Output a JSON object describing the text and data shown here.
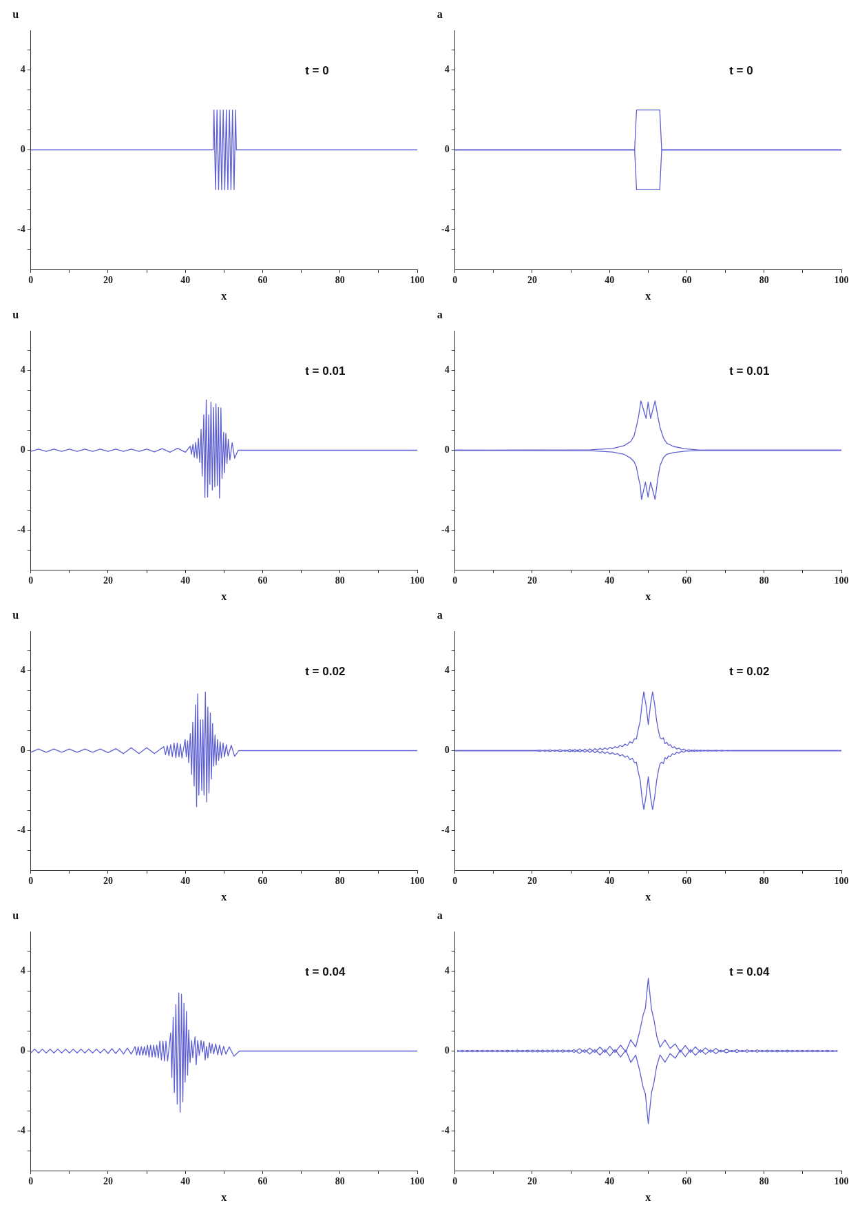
{
  "chart_data": [
    {
      "type": "line",
      "ylabel": "u",
      "xlabel": "x",
      "annotations": [
        "t = 0"
      ],
      "xlim": [
        0,
        100
      ],
      "ylim": [
        -6,
        6
      ],
      "xticks": [
        0,
        {
          "value": 10,
          "label": null
        },
        20,
        {
          "value": 30,
          "label": null
        },
        40,
        {
          "value": 50,
          "label": null
        },
        60,
        {
          "value": 70,
          "label": null
        },
        80,
        {
          "value": 90,
          "label": null
        },
        100
      ],
      "yticks": [
        {
          "value": -5,
          "label": null
        },
        -4,
        {
          "value": -3,
          "label": null
        },
        {
          "value": -2,
          "label": null
        },
        {
          "value": -1,
          "label": null
        },
        0,
        {
          "value": 1,
          "label": null
        },
        {
          "value": 2,
          "label": null
        },
        {
          "value": 3,
          "label": null
        },
        4,
        {
          "value": 5,
          "label": null
        }
      ],
      "grid": false,
      "legend": false,
      "marker": "none",
      "series": [
        {
          "color": "#5d5fd3",
          "x": [
            0,
            47.2,
            47.4,
            47.8,
            48.2,
            48.6,
            49.0,
            49.4,
            49.8,
            50.2,
            50.6,
            51.0,
            51.4,
            51.8,
            52.2,
            52.6,
            53.0,
            53.2,
            100
          ],
          "values": [
            0,
            0,
            2,
            -2,
            2,
            -2,
            2,
            -2,
            2,
            -2,
            2,
            -2,
            2,
            -2,
            2,
            -2,
            2,
            0,
            0
          ]
        }
      ]
    },
    {
      "type": "line",
      "ylabel": "a",
      "xlabel": "x",
      "annotations": [
        "t = 0"
      ],
      "xlim": [
        0,
        100
      ],
      "ylim": [
        -6,
        6
      ],
      "xticks": [
        0,
        {
          "value": 10,
          "label": null
        },
        20,
        {
          "value": 30,
          "label": null
        },
        40,
        {
          "value": 50,
          "label": null
        },
        60,
        {
          "value": 70,
          "label": null
        },
        80,
        {
          "value": 90,
          "label": null
        },
        100
      ],
      "yticks": [
        {
          "value": -5,
          "label": null
        },
        -4,
        {
          "value": -3,
          "label": null
        },
        {
          "value": -2,
          "label": null
        },
        {
          "value": -1,
          "label": null
        },
        0,
        {
          "value": 1,
          "label": null
        },
        {
          "value": 2,
          "label": null
        },
        {
          "value": 3,
          "label": null
        },
        4,
        {
          "value": 5,
          "label": null
        }
      ],
      "grid": false,
      "legend": false,
      "marker": "none",
      "series": [
        {
          "color": "#5d5fd3",
          "x": [
            0,
            46.5,
            47.0,
            53.0,
            53.5,
            100
          ],
          "values": [
            0,
            0,
            2,
            2,
            0,
            0
          ]
        },
        {
          "color": "#5d5fd3",
          "x": [
            0,
            46.5,
            47.0,
            53.0,
            53.5,
            100
          ],
          "values": [
            0,
            0,
            -2,
            -2,
            0,
            0
          ]
        }
      ]
    },
    {
      "type": "line",
      "ylabel": "u",
      "xlabel": "x",
      "annotations": [
        "t = 0.01"
      ],
      "xlim": [
        0,
        100
      ],
      "ylim": [
        -6,
        6
      ],
      "xticks": [
        0,
        {
          "value": 10,
          "label": null
        },
        20,
        {
          "value": 30,
          "label": null
        },
        40,
        {
          "value": 50,
          "label": null
        },
        60,
        {
          "value": 70,
          "label": null
        },
        80,
        {
          "value": 90,
          "label": null
        },
        100
      ],
      "yticks": [
        {
          "value": -5,
          "label": null
        },
        -4,
        {
          "value": -3,
          "label": null
        },
        {
          "value": -2,
          "label": null
        },
        {
          "value": -1,
          "label": null
        },
        0,
        {
          "value": 1,
          "label": null
        },
        {
          "value": 2,
          "label": null
        },
        {
          "value": 3,
          "label": null
        },
        4,
        {
          "value": 5,
          "label": null
        }
      ],
      "grid": false,
      "legend": false,
      "marker": "none",
      "series": [
        {
          "color": "#5d5fd3",
          "x": [
            0,
            2,
            4,
            6,
            8,
            10,
            12,
            14,
            16,
            18,
            20,
            22,
            24,
            26,
            28,
            30,
            32,
            34,
            36,
            38,
            40,
            41.28,
            41.57,
            41.97,
            42.32,
            42.67,
            43.02,
            43.37,
            43.72,
            44.07,
            44.36,
            44.77,
            45.06,
            45.41,
            45.76,
            46.05,
            46.34,
            46.63,
            46.98,
            47.28,
            47.62,
            47.92,
            48.27,
            48.56,
            48.85,
            49.2,
            49.49,
            49.9,
            50.13,
            50.48,
            50.77,
            51.12,
            51.53,
            52.11,
            52.75,
            53.62,
            100
          ],
          "values": [
            -0.06,
            0.06,
            -0.06,
            0.06,
            -0.06,
            0.06,
            -0.06,
            0.06,
            -0.06,
            0.06,
            -0.06,
            0.06,
            -0.06,
            0.06,
            -0.06,
            0.06,
            -0.08,
            0.08,
            -0.1,
            0.1,
            -0.1,
            0.2,
            -0.2,
            0.3,
            -0.35,
            0.4,
            -0.4,
            0.6,
            -0.6,
            1.05,
            -1.3,
            1.78,
            -2.37,
            2.53,
            -2.35,
            1.78,
            -1.71,
            2.42,
            -2.0,
            2.15,
            -1.83,
            2.33,
            -1.77,
            2.15,
            -2.4,
            2.13,
            -1.42,
            0.9,
            -1.13,
            0.85,
            -0.66,
            0.56,
            -0.49,
            0.38,
            -0.4,
            0,
            0
          ]
        }
      ]
    },
    {
      "type": "line",
      "ylabel": "a",
      "xlabel": "x",
      "annotations": [
        "t = 0.01"
      ],
      "xlim": [
        0,
        100
      ],
      "ylim": [
        -6,
        6
      ],
      "xticks": [
        0,
        {
          "value": 10,
          "label": null
        },
        20,
        {
          "value": 30,
          "label": null
        },
        40,
        {
          "value": 50,
          "label": null
        },
        60,
        {
          "value": 70,
          "label": null
        },
        80,
        {
          "value": 90,
          "label": null
        },
        100
      ],
      "yticks": [
        {
          "value": -5,
          "label": null
        },
        -4,
        {
          "value": -3,
          "label": null
        },
        {
          "value": -2,
          "label": null
        },
        {
          "value": -1,
          "label": null
        },
        0,
        {
          "value": 1,
          "label": null
        },
        {
          "value": 2,
          "label": null
        },
        {
          "value": 3,
          "label": null
        },
        4,
        {
          "value": 5,
          "label": null
        }
      ],
      "grid": false,
      "legend": false,
      "marker": "none",
      "series": [
        {
          "color": "#5d5fd3",
          "x": [
            0,
            35.02,
            40.84,
            43.75,
            45.5,
            46.37,
            46.96,
            47.54,
            48.12,
            49.46,
            49.99,
            50.63,
            51.79,
            52.49,
            53.07,
            53.95,
            54.82,
            56.57,
            59.48,
            64.14,
            100
          ],
          "values": [
            0,
            0.02,
            0.09,
            0.23,
            0.44,
            0.73,
            1.2,
            1.72,
            2.48,
            1.6,
            2.42,
            1.6,
            2.48,
            1.72,
            1.14,
            0.62,
            0.35,
            0.19,
            0.07,
            0,
            0
          ]
        },
        {
          "color": "#5d5fd3",
          "x": [
            0,
            35.02,
            40.84,
            43.75,
            45.5,
            46.37,
            46.96,
            47.54,
            47.95,
            48.3,
            49.29,
            49.99,
            50.63,
            51.79,
            52.49,
            53.07,
            53.95,
            54.82,
            56.57,
            59.48,
            64.14,
            100
          ],
          "values": [
            0,
            -0.02,
            -0.09,
            -0.2,
            -0.4,
            -0.58,
            -0.84,
            -1.42,
            -1.77,
            -2.47,
            -1.6,
            -2.35,
            -1.6,
            -2.47,
            -1.42,
            -0.78,
            -0.37,
            -0.2,
            -0.12,
            -0.05,
            0,
            0
          ]
        }
      ]
    },
    {
      "type": "line",
      "ylabel": "u",
      "xlabel": "x",
      "annotations": [
        "t = 0.02"
      ],
      "xlim": [
        0,
        100
      ],
      "ylim": [
        -6,
        6
      ],
      "xticks": [
        0,
        {
          "value": 10,
          "label": null
        },
        20,
        {
          "value": 30,
          "label": null
        },
        40,
        {
          "value": 50,
          "label": null
        },
        60,
        {
          "value": 70,
          "label": null
        },
        80,
        {
          "value": 90,
          "label": null
        },
        100
      ],
      "yticks": [
        {
          "value": -5,
          "label": null
        },
        -4,
        {
          "value": -3,
          "label": null
        },
        {
          "value": -2,
          "label": null
        },
        {
          "value": -1,
          "label": null
        },
        0,
        {
          "value": 1,
          "label": null
        },
        {
          "value": 2,
          "label": null
        },
        {
          "value": 3,
          "label": null
        },
        4,
        {
          "value": 5,
          "label": null
        }
      ],
      "grid": false,
      "legend": false,
      "marker": "none",
      "series": [
        {
          "color": "#5d5fd3",
          "x": [
            0,
            2,
            4,
            6,
            8,
            10,
            12,
            14,
            16,
            18,
            20,
            22,
            24,
            26,
            28,
            30,
            32,
            34.4,
            34.87,
            35.33,
            35.74,
            36.21,
            36.62,
            37.08,
            37.55,
            37.9,
            38.36,
            38.71,
            39.12,
            39.94,
            40.23,
            40.58,
            40.87,
            41.28,
            41.62,
            41.92,
            42.27,
            42.61,
            42.91,
            43.2,
            43.49,
            43.9,
            44.25,
            44.54,
            44.83,
            45.18,
            45.53,
            45.82,
            46.11,
            46.46,
            46.75,
            47.04,
            47.33,
            47.68,
            47.97,
            48.32,
            48.61,
            49.02,
            49.31,
            49.78,
            50.13,
            50.6,
            51.06,
            51.88,
            52.75,
            53.8,
            100
          ],
          "values": [
            -0.08,
            0.08,
            -0.08,
            0.08,
            -0.08,
            0.08,
            -0.08,
            0.08,
            -0.08,
            0.08,
            -0.1,
            0.1,
            -0.15,
            0.15,
            -0.15,
            0.15,
            -0.15,
            0.2,
            -0.2,
            0.25,
            -0.25,
            0.3,
            -0.3,
            0.38,
            -0.35,
            0.38,
            -0.31,
            0.33,
            -0.37,
            0.56,
            -0.31,
            0.5,
            -0.6,
            0.85,
            -1.19,
            1.43,
            -1.77,
            2.3,
            -2.81,
            2.86,
            -2.23,
            1.55,
            -2.0,
            1.55,
            -2.23,
            2.94,
            -2.58,
            2.19,
            -2.12,
            1.9,
            -1.42,
            1.37,
            -0.78,
            0.79,
            -0.72,
            0.56,
            -0.49,
            0.44,
            -0.37,
            0.38,
            -0.31,
            0.3,
            -0.26,
            0.27,
            -0.29,
            0,
            0
          ]
        }
      ]
    },
    {
      "type": "line",
      "ylabel": "a",
      "xlabel": "x",
      "annotations": [
        "t = 0.02"
      ],
      "xlim": [
        0,
        100
      ],
      "ylim": [
        -6,
        6
      ],
      "xticks": [
        0,
        {
          "value": 10,
          "label": null
        },
        20,
        {
          "value": 30,
          "label": null
        },
        40,
        {
          "value": 50,
          "label": null
        },
        60,
        {
          "value": 70,
          "label": null
        },
        80,
        {
          "value": 90,
          "label": null
        },
        100
      ],
      "yticks": [
        {
          "value": -5,
          "label": null
        },
        -4,
        {
          "value": -3,
          "label": null
        },
        {
          "value": -2,
          "label": null
        },
        {
          "value": -1,
          "label": null
        },
        0,
        {
          "value": 1,
          "label": null
        },
        {
          "value": 2,
          "label": null
        },
        {
          "value": 3,
          "label": null
        },
        4,
        {
          "value": 5,
          "label": null
        }
      ],
      "grid": false,
      "legend": false,
      "marker": "none",
      "series": [
        {
          "color": "#5d5fd3",
          "x": [
            0,
            20.7,
            22,
            23.3,
            24.6,
            25.9,
            27.2,
            28.5,
            29.77,
            30.41,
            31.05,
            31.69,
            32.34,
            32.98,
            33.62,
            34.26,
            34.9,
            35.6,
            36.24,
            36.88,
            37.52,
            38.16,
            38.8,
            39.44,
            40.14,
            40.78,
            41.42,
            42.06,
            42.7,
            43.34,
            43.99,
            44.63,
            45.27,
            45.91,
            46.43,
            46.96,
            47.36,
            47.95,
            48.41,
            48.88,
            49.4,
            50.04,
            50.63,
            51.15,
            51.67,
            52.2,
            52.66,
            53.07,
            53.54,
            53.95,
            54.35,
            54.82,
            55.29,
            55.75,
            56.28,
            56.8,
            57.38,
            57.97,
            58.61,
            59.25,
            59.89,
            60.53,
            61.23,
            61.93,
            62.68,
            63.56,
            64.43,
            65.31,
            66.47,
            67.7,
            69,
            70.5,
            72,
            100
          ],
          "values": [
            0,
            0,
            0.03,
            -0.03,
            0.04,
            -0.03,
            0.05,
            -0.03,
            0.06,
            -0.03,
            0.06,
            -0.03,
            0.07,
            -0.02,
            0.08,
            -0.01,
            0.09,
            0,
            0.1,
            0.02,
            0.12,
            0.04,
            0.14,
            0.06,
            0.17,
            0.1,
            0.2,
            0.14,
            0.26,
            0.2,
            0.33,
            0.26,
            0.45,
            0.38,
            0.6,
            0.58,
            1.0,
            1.5,
            2.35,
            2.95,
            2.35,
            1.31,
            2.35,
            2.95,
            2.35,
            1.5,
            1.0,
            0.65,
            0.58,
            0.65,
            0.35,
            0.42,
            0.26,
            0.3,
            0.15,
            0.2,
            0.08,
            0.13,
            0.03,
            0.08,
            -0.01,
            0.05,
            -0.03,
            0.04,
            -0.03,
            0.03,
            -0.02,
            0.02,
            0,
            0.02,
            -0.02,
            0.01,
            0,
            0
          ]
        },
        {
          "color": "#5d5fd3",
          "x": [
            0,
            20.7,
            22,
            23.3,
            24.6,
            25.9,
            27.2,
            28.5,
            29.77,
            30.41,
            31.05,
            31.69,
            32.34,
            32.98,
            33.62,
            34.26,
            34.9,
            35.6,
            36.24,
            36.88,
            37.52,
            38.16,
            38.8,
            39.44,
            40.14,
            40.78,
            41.42,
            42.06,
            42.7,
            43.34,
            43.99,
            44.63,
            45.27,
            45.91,
            46.43,
            46.96,
            47.36,
            47.95,
            48.41,
            48.88,
            49.4,
            50.04,
            50.63,
            51.15,
            51.67,
            52.2,
            52.66,
            53.07,
            53.54,
            53.95,
            54.35,
            54.82,
            55.29,
            55.75,
            56.28,
            56.8,
            57.38,
            57.97,
            58.61,
            59.25,
            59.89,
            60.53,
            61.23,
            61.93,
            62.68,
            63.56,
            64.43,
            65.31,
            66.47,
            67.7,
            69,
            70.5,
            72,
            100
          ],
          "values": [
            0,
            0,
            -0.03,
            0.03,
            -0.04,
            0.03,
            -0.05,
            0.03,
            -0.06,
            0.03,
            -0.06,
            0.03,
            -0.07,
            0.02,
            -0.08,
            0.01,
            -0.09,
            0,
            -0.1,
            -0.02,
            -0.12,
            -0.04,
            -0.14,
            -0.06,
            -0.17,
            -0.1,
            -0.2,
            -0.14,
            -0.26,
            -0.2,
            -0.33,
            -0.26,
            -0.45,
            -0.38,
            -0.6,
            -0.58,
            -1.0,
            -1.5,
            -2.35,
            -2.95,
            -2.35,
            -1.31,
            -2.35,
            -2.95,
            -2.35,
            -1.5,
            -1.0,
            -0.65,
            -0.58,
            -0.65,
            -0.35,
            -0.42,
            -0.26,
            -0.3,
            -0.15,
            -0.2,
            -0.08,
            -0.13,
            -0.03,
            -0.08,
            0.01,
            -0.05,
            0.03,
            -0.04,
            0.03,
            -0.03,
            0.02,
            -0.02,
            0,
            -0.02,
            0.02,
            -0.01,
            0,
            0
          ]
        }
      ]
    },
    {
      "type": "line",
      "ylabel": "u",
      "xlabel": "x",
      "annotations": [
        "t = 0.04"
      ],
      "xlim": [
        0,
        100
      ],
      "ylim": [
        -6,
        6
      ],
      "xticks": [
        0,
        {
          "value": 10,
          "label": null
        },
        20,
        {
          "value": 30,
          "label": null
        },
        40,
        {
          "value": 50,
          "label": null
        },
        60,
        {
          "value": 70,
          "label": null
        },
        80,
        {
          "value": 90,
          "label": null
        },
        100
      ],
      "yticks": [
        {
          "value": -5,
          "label": null
        },
        -4,
        {
          "value": -3,
          "label": null
        },
        {
          "value": -2,
          "label": null
        },
        {
          "value": -1,
          "label": null
        },
        0,
        {
          "value": 1,
          "label": null
        },
        {
          "value": 2,
          "label": null
        },
        {
          "value": 3,
          "label": null
        },
        4,
        {
          "value": 5,
          "label": null
        }
      ],
      "grid": false,
      "legend": false,
      "marker": "none",
      "series": [
        {
          "color": "#5d5fd3",
          "x": [
            0,
            1,
            2,
            3,
            4,
            5,
            6,
            7,
            8,
            9,
            10,
            11,
            12,
            13,
            14,
            15,
            16,
            17,
            18,
            19,
            20,
            21,
            22,
            23,
            24,
            25,
            26,
            27.0,
            27.4,
            27.8,
            28.2,
            28.6,
            29.0,
            29.4,
            29.8,
            30.2,
            30.6,
            31.0,
            31.4,
            31.8,
            32.2,
            32.6,
            33.0,
            33.4,
            33.8,
            34.2,
            34.6,
            35.0,
            35.4,
            36.21,
            36.5,
            36.85,
            37.14,
            37.55,
            37.9,
            38.3,
            38.65,
            39.0,
            39.35,
            39.64,
            39.94,
            40.28,
            40.58,
            40.87,
            41.22,
            41.62,
            41.92,
            42.5,
            42.79,
            43.2,
            43.61,
            44.07,
            44.42,
            44.77,
            45.12,
            45.47,
            45.82,
            46.23,
            46.58,
            46.93,
            47.33,
            47.86,
            48.38,
            48.85,
            49.37,
            49.9,
            50.48,
            51.35,
            52.58,
            53.97,
            100
          ],
          "values": [
            -0.1,
            0.1,
            -0.1,
            0.1,
            -0.1,
            0.1,
            -0.1,
            0.1,
            -0.1,
            0.1,
            -0.1,
            0.1,
            -0.1,
            0.1,
            -0.1,
            0.1,
            -0.1,
            0.1,
            -0.1,
            0.1,
            -0.12,
            0.12,
            -0.12,
            0.12,
            -0.15,
            0.15,
            -0.15,
            0.22,
            -0.2,
            0.22,
            -0.2,
            0.22,
            -0.2,
            0.22,
            -0.2,
            0.3,
            -0.3,
            0.3,
            -0.3,
            0.3,
            -0.3,
            0.3,
            -0.35,
            0.5,
            -0.45,
            0.5,
            -0.5,
            0.5,
            -0.5,
            0.91,
            -1.33,
            1.7,
            -2.08,
            2.34,
            -2.66,
            2.92,
            -3.07,
            2.86,
            -2.55,
            2.4,
            -1.56,
            1.99,
            -1.21,
            1.06,
            -0.57,
            0.53,
            -0.34,
            0.71,
            -0.69,
            0.53,
            -0.22,
            0.53,
            -0.05,
            0.48,
            -0.45,
            0.24,
            -0.34,
            0.42,
            -0.1,
            0.36,
            -0.14,
            0.36,
            -0.19,
            0.3,
            -0.19,
            0.24,
            -0.16,
            0.21,
            -0.26,
            0,
            0
          ]
        }
      ]
    },
    {
      "type": "line",
      "ylabel": "a",
      "xlabel": "x",
      "annotations": [
        "t = 0.04"
      ],
      "xlim": [
        0,
        100
      ],
      "ylim": [
        -6,
        6
      ],
      "xticks": [
        0,
        {
          "value": 10,
          "label": null
        },
        20,
        {
          "value": 30,
          "label": null
        },
        40,
        {
          "value": 50,
          "label": null
        },
        60,
        {
          "value": 70,
          "label": null
        },
        80,
        {
          "value": 90,
          "label": null
        },
        100
      ],
      "yticks": [
        {
          "value": -5,
          "label": null
        },
        -4,
        {
          "value": -3,
          "label": null
        },
        {
          "value": -2,
          "label": null
        },
        {
          "value": -1,
          "label": null
        },
        0,
        {
          "value": 1,
          "label": null
        },
        {
          "value": 2,
          "label": null
        },
        {
          "value": 3,
          "label": null
        },
        4,
        {
          "value": 5,
          "label": null
        }
      ],
      "grid": false,
      "legend": false,
      "marker": "none",
      "series": [
        {
          "color": "#5d5fd3",
          "x": [
            0.6,
            1.9,
            3.2,
            4.5,
            5.8,
            7.1,
            8.4,
            9.7,
            11.0,
            12.3,
            13.6,
            14.9,
            16.2,
            17.5,
            18.8,
            20.1,
            21.4,
            22.7,
            24.0,
            25.3,
            26.6,
            27.9,
            29.48,
            30.82,
            32.22,
            33.56,
            34.9,
            36.18,
            37.52,
            38.8,
            40.08,
            41.42,
            42.88,
            44.22,
            45.5,
            46.78,
            47.83,
            48.7,
            49.29,
            49.69,
            50.04,
            50.39,
            50.86,
            51.5,
            52.2,
            53.07,
            54.35,
            55.69,
            57.03,
            58.32,
            59.6,
            60.94,
            62.22,
            63.56,
            64.84,
            66.18,
            67.52,
            68.8,
            70.26,
            71.6,
            73.0,
            74.33,
            75.6,
            76.9,
            78.2,
            79.5,
            80.8,
            82.1,
            83.4,
            84.7,
            86.0,
            87.3,
            88.6,
            89.9,
            91.2,
            92.5,
            93.8,
            95.1,
            96.4,
            97.7,
            99.0
          ],
          "values": [
            0.04,
            -0.04,
            0.04,
            -0.04,
            0.04,
            -0.04,
            0.04,
            -0.04,
            0.04,
            -0.04,
            0.05,
            -0.04,
            0.05,
            -0.04,
            0.05,
            -0.05,
            0.05,
            -0.05,
            0.05,
            -0.05,
            0.05,
            -0.06,
            0.05,
            -0.07,
            0.12,
            -0.07,
            0.15,
            -0.07,
            0.2,
            -0.07,
            0.24,
            -0.07,
            0.3,
            -0.05,
            0.57,
            0.2,
            1.0,
            1.81,
            2.16,
            2.98,
            3.65,
            2.98,
            2.1,
            1.58,
            0.77,
            0.19,
            0.56,
            0.13,
            0.36,
            -0.05,
            0.28,
            -0.07,
            0.21,
            -0.06,
            0.16,
            -0.06,
            0.13,
            -0.05,
            0.09,
            -0.04,
            0.07,
            -0.04,
            0.06,
            -0.04,
            0.06,
            -0.04,
            0.05,
            -0.04,
            0.05,
            -0.04,
            0.05,
            -0.04,
            0.04,
            -0.04,
            0.04,
            -0.04,
            0.04,
            -0.03,
            0.04,
            -0.03,
            0.03
          ]
        },
        {
          "color": "#5d5fd3",
          "x": [
            0.6,
            1.9,
            3.2,
            4.5,
            5.8,
            7.1,
            8.4,
            9.7,
            11.0,
            12.3,
            13.6,
            14.9,
            16.2,
            17.5,
            18.8,
            20.1,
            21.4,
            22.7,
            24.0,
            25.3,
            26.6,
            27.9,
            29.48,
            30.82,
            32.22,
            33.56,
            34.9,
            36.18,
            37.52,
            38.8,
            40.08,
            41.42,
            42.88,
            44.22,
            45.5,
            46.78,
            47.83,
            48.7,
            49.29,
            49.69,
            50.04,
            50.39,
            50.86,
            51.5,
            52.2,
            53.07,
            54.35,
            55.69,
            57.03,
            58.32,
            59.6,
            60.94,
            62.22,
            63.56,
            64.84,
            66.18,
            67.52,
            68.8,
            70.26,
            71.6,
            73.0,
            74.33,
            75.6,
            76.9,
            78.2,
            79.5,
            80.8,
            82.1,
            83.4,
            84.7,
            86.0,
            87.3,
            88.6,
            89.9,
            91.2,
            92.5,
            93.8,
            95.1,
            96.4,
            97.7,
            99.0
          ],
          "values": [
            -0.04,
            0.04,
            -0.04,
            0.04,
            -0.04,
            0.04,
            -0.04,
            0.04,
            -0.04,
            0.04,
            -0.05,
            0.04,
            -0.05,
            0.04,
            -0.05,
            0.05,
            -0.05,
            0.05,
            -0.05,
            0.05,
            -0.05,
            0.06,
            -0.05,
            0.07,
            -0.12,
            0.07,
            -0.15,
            0.07,
            -0.2,
            0.07,
            -0.24,
            0.07,
            -0.3,
            0.05,
            -0.57,
            -0.2,
            -1.0,
            -1.81,
            -2.16,
            -2.98,
            -3.65,
            -2.98,
            -2.1,
            -1.58,
            -0.77,
            -0.19,
            -0.56,
            -0.13,
            -0.36,
            0.05,
            -0.28,
            0.07,
            -0.21,
            0.06,
            -0.16,
            0.06,
            -0.13,
            0.05,
            -0.09,
            0.04,
            -0.07,
            0.04,
            -0.06,
            0.04,
            -0.06,
            0.04,
            -0.05,
            0.04,
            -0.05,
            0.04,
            -0.05,
            0.04,
            -0.04,
            0.04,
            -0.04,
            0.04,
            -0.04,
            0.03,
            -0.04,
            0.03,
            -0.03
          ]
        }
      ]
    }
  ]
}
